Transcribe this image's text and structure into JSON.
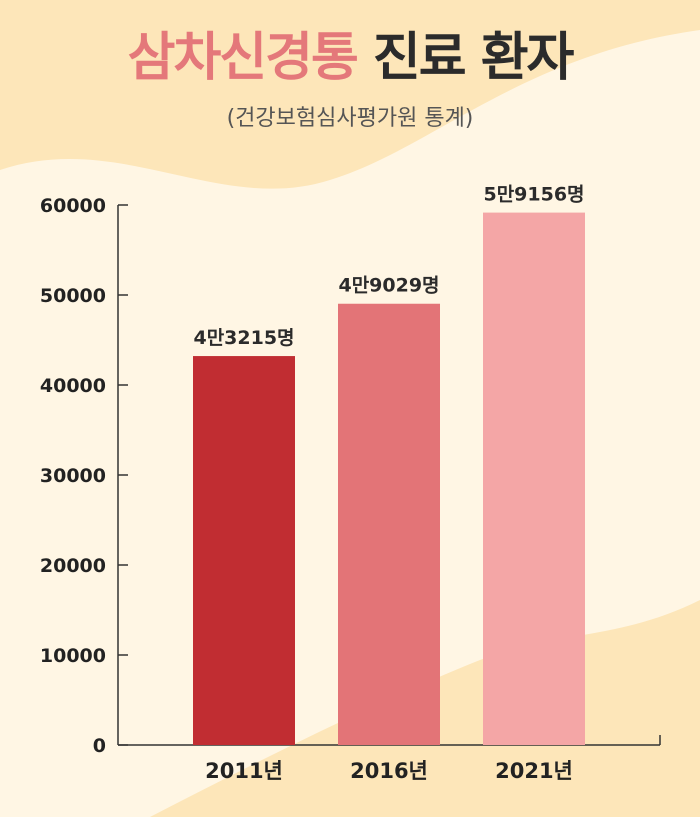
{
  "header": {
    "title_accent": "삼차신경통",
    "title_rest": "진료 환자",
    "subtitle": "(건강보험심사평가원 통계)"
  },
  "colors": {
    "background_light": "#fdf0d6",
    "background_cream": "#fff6e4",
    "title_accent": "#e4787a",
    "title_text": "#2b2b2b",
    "axis": "#333333"
  },
  "chart_data": {
    "type": "bar",
    "categories": [
      "2011년",
      "2016년",
      "2021년"
    ],
    "values": [
      43215,
      49029,
      59156
    ],
    "data_labels": [
      "4만3215명",
      "4만9029명",
      "5만9156명"
    ],
    "bar_colors": [
      "#c12d32",
      "#e37477",
      "#f4a6a6"
    ],
    "ylim": [
      0,
      60000
    ],
    "yticks": [
      "0",
      "10000",
      "20000",
      "30000",
      "40000",
      "50000",
      "60000"
    ],
    "grid": false,
    "legend": "none"
  }
}
